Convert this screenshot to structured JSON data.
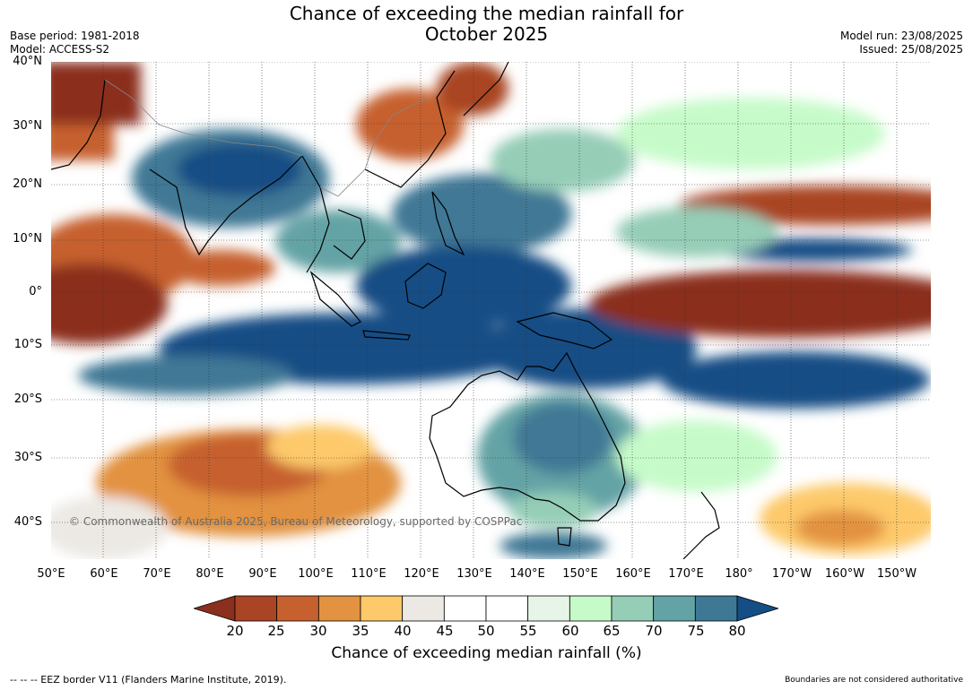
{
  "title_line1": "Chance of exceeding the median rainfall for",
  "title_line2": "October 2025",
  "base_period": "Base period: 1981-2018",
  "model": "Model: ACCESS-S2",
  "model_run": "Model run: 23/08/2025",
  "issued": "Issued: 25/08/2025",
  "copyright": "© Commonwealth of Australia 2025, Bureau of Meteorology, supported by COSPPac",
  "latitude_labels": [
    "40°N",
    "30°N",
    "20°N",
    "10°N",
    "0°",
    "10°S",
    "20°S",
    "30°S",
    "40°S"
  ],
  "longitude_labels": [
    "50°E",
    "60°E",
    "70°E",
    "80°E",
    "90°E",
    "100°E",
    "110°E",
    "120°E",
    "130°E",
    "140°E",
    "150°E",
    "160°E",
    "170°E",
    "180°",
    "170°W",
    "160°W",
    "150°W"
  ],
  "colorbar": {
    "ticks": [
      "20",
      "25",
      "30",
      "35",
      "40",
      "45",
      "50",
      "55",
      "60",
      "65",
      "70",
      "75",
      "80"
    ],
    "colors": [
      "#8b2f1e",
      "#a94424",
      "#c6612f",
      "#e29240",
      "#fdc96a",
      "#ece9e4",
      "#ffffff",
      "#ffffff",
      "#e6f5e8",
      "#c6fbc9",
      "#95cdb7",
      "#64a3a5",
      "#3f7895",
      "#154d85"
    ],
    "label": "Chance of exceeding median rainfall (%)"
  },
  "legend_eez": "--  --  -- EEZ border V11 (Flanders Marine Institute, 2019).",
  "disclaimer": "Boundaries are not considered authoritative"
}
